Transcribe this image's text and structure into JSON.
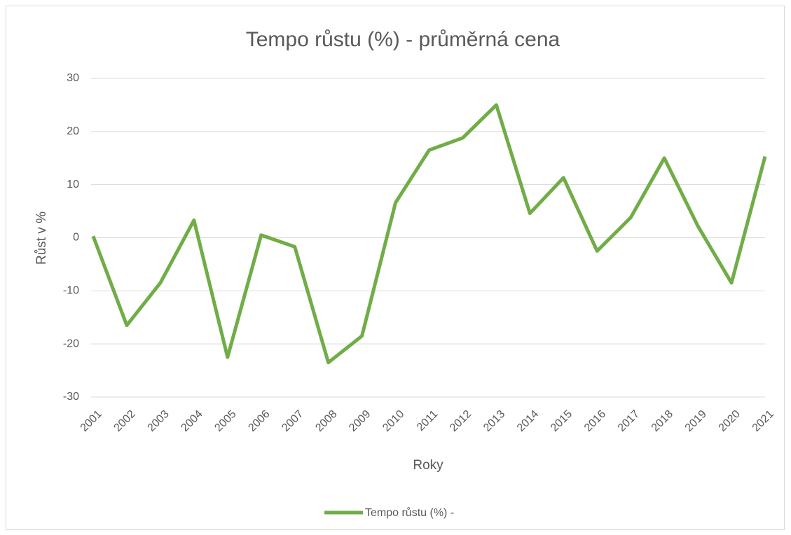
{
  "chart_data": {
    "type": "line",
    "title": "Tempo růstu (%) - průměrná cena",
    "x_label": "Roky",
    "y_label": "Růst v %",
    "categories": [
      "2001",
      "2002",
      "2003",
      "2004",
      "2005",
      "2006",
      "2007",
      "2008",
      "2009",
      "2010",
      "2011",
      "2012",
      "2013",
      "2014",
      "2015",
      "2016",
      "2017",
      "2018",
      "2019",
      "2020",
      "2021"
    ],
    "series": [
      {
        "name": "Tempo růstu (%) -",
        "color": "#70ad47",
        "values": [
          0.3,
          -16.5,
          -8.5,
          3.3,
          -22.5,
          0.5,
          -1.7,
          -23.5,
          -18.5,
          6.6,
          16.5,
          18.8,
          25,
          4.6,
          11.3,
          -2.5,
          3.8,
          15,
          2.2,
          -8.5,
          15.3
        ]
      }
    ],
    "ylim": [
      -30,
      30
    ],
    "yticks": [
      -30,
      -20,
      -10,
      0,
      10,
      20,
      30
    ],
    "grid": true,
    "legend": "bottom"
  }
}
